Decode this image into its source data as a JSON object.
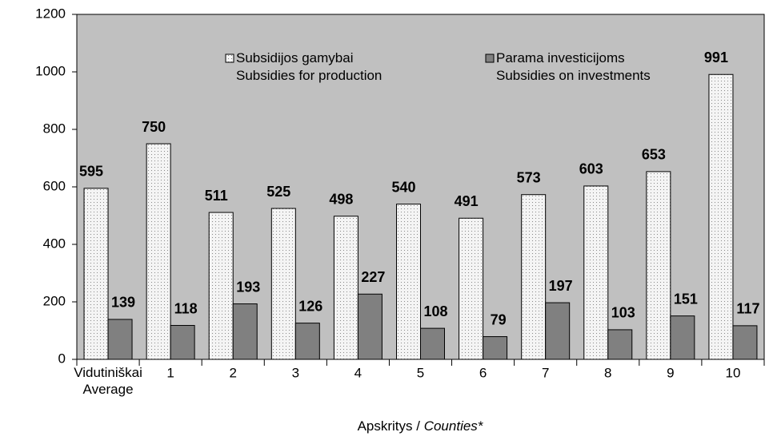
{
  "chart_data": {
    "type": "bar",
    "categories": [
      "Vidutiniškai\nAverage",
      "1",
      "2",
      "3",
      "4",
      "5",
      "6",
      "7",
      "8",
      "9",
      "10"
    ],
    "series": [
      {
        "name": "Subsidijos gamybai\nSubsidies for production",
        "color": "#f2f2f2",
        "pattern": "dots",
        "values": [
          595,
          750,
          511,
          525,
          498,
          540,
          491,
          573,
          603,
          653,
          991
        ]
      },
      {
        "name": "Parama investicijoms\nSubsidies on investments",
        "color": "#808080",
        "values": [
          139,
          118,
          193,
          126,
          227,
          108,
          79,
          197,
          103,
          151,
          117
        ]
      }
    ],
    "xlabel": [
      "Apskritys /",
      "Counties*"
    ],
    "ylim": [
      0,
      1200
    ],
    "yticks": [
      0,
      200,
      400,
      600,
      800,
      1000,
      1200
    ],
    "plot_background": "#c0c0c0",
    "grid": false
  }
}
